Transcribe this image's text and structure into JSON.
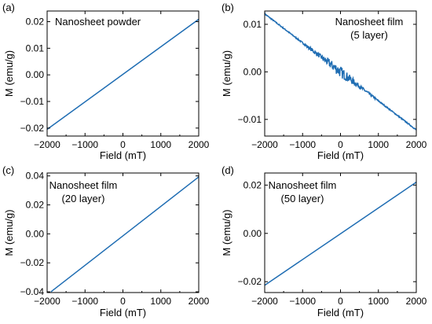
{
  "chart_data": [
    {
      "type": "line",
      "panel_label": "(a)",
      "annotation": [
        "Nanosheet powder"
      ],
      "xlabel": "Field (mT)",
      "ylabel": "M (emu/g)",
      "xlim": [
        -2000,
        2000
      ],
      "ylim": [
        -0.023,
        0.024
      ],
      "xticks": [
        -2000,
        -1000,
        0,
        1000,
        2000
      ],
      "xtick_labels": [
        "−2000",
        "−1000",
        "0",
        "1000",
        "2000"
      ],
      "yticks": [
        -0.02,
        -0.01,
        0,
        0.01,
        0.02
      ],
      "ytick_labels": [
        "−0.02",
        "−0.01",
        "0.00",
        "0.01",
        "0.02"
      ],
      "color": "#1f6db3",
      "x": [
        -2000,
        2000
      ],
      "y": [
        -0.0205,
        0.0209
      ]
    },
    {
      "type": "line",
      "panel_label": "(b)",
      "annotation": [
        "Nanosheet film",
        "(5 layer)"
      ],
      "xlabel": "Field (mT)",
      "ylabel": "M (emu/g)",
      "xlim": [
        -2000,
        2000
      ],
      "ylim": [
        -0.0135,
        0.0128
      ],
      "xticks": [
        -2000,
        -1000,
        0,
        1000,
        2000
      ],
      "xtick_labels": [
        "−2000",
        "−1000",
        "0",
        "1000",
        "2000"
      ],
      "yticks": [
        -0.01,
        0,
        0.01
      ],
      "ytick_labels": [
        "−0.01",
        "0.00",
        "0.01"
      ],
      "color": "#1f6db3",
      "x": [
        -2000,
        2000
      ],
      "y": [
        0.0122,
        -0.0122
      ],
      "noise": [
        {
          "x": -700,
          "amplitude": 0.0003
        },
        {
          "x": -300,
          "amplitude": 0.0006
        },
        {
          "x": 0,
          "amplitude": 0.0009
        },
        {
          "x": 300,
          "amplitude": 0.0005
        },
        {
          "x": 700,
          "amplitude": 0.0002
        }
      ]
    },
    {
      "type": "line",
      "panel_label": "(c)",
      "annotation": [
        "Nanosheet film",
        "(20 layer)"
      ],
      "xlabel": "Field (mT)",
      "ylabel": "M (emu/g)",
      "xlim": [
        -2000,
        2000
      ],
      "ylim": [
        -0.0405,
        0.042
      ],
      "xticks": [
        -2000,
        -1000,
        0,
        1000,
        2000
      ],
      "xtick_labels": [
        "−2000",
        "−1000",
        "0",
        "1000",
        "2000"
      ],
      "yticks": [
        -0.04,
        -0.02,
        0,
        0.02,
        0.04
      ],
      "ytick_labels": [
        "−0.04",
        "−0.02",
        "0.00",
        "0.02",
        "0.04"
      ],
      "color": "#1f6db3",
      "x": [
        -1900,
        2000
      ],
      "y": [
        -0.04,
        0.0393
      ]
    },
    {
      "type": "line",
      "panel_label": "(d)",
      "annotation": [
        "Nanosheet film",
        "(50 layer)"
      ],
      "xlabel": "Field (mT)",
      "ylabel": "M (emu/g)",
      "xlim": [
        -2000,
        2000
      ],
      "ylim": [
        -0.0245,
        0.025
      ],
      "xticks": [
        -2000,
        -1000,
        0,
        1000,
        2000
      ],
      "xtick_labels": [
        "−2000",
        "−1000",
        "0",
        "1000",
        "2000"
      ],
      "yticks": [
        -0.02,
        0,
        0.02
      ],
      "ytick_labels": [
        "−0.02",
        "0.00",
        "0.02"
      ],
      "color": "#1f6db3",
      "x": [
        -2000,
        2000
      ],
      "y": [
        -0.0215,
        0.0212
      ]
    }
  ]
}
